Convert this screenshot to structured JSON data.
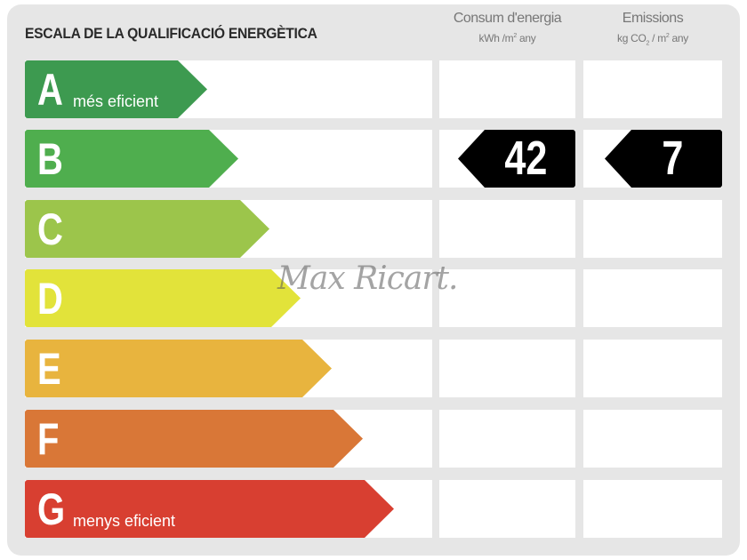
{
  "title": "ESCALA DE LA QUALIFICACIÓ ENERGÈTICA",
  "columns": {
    "consumption": {
      "title": "Consum d'energia",
      "unit_prefix": "kWh /m",
      "unit_sup": "2",
      "unit_suffix": " any"
    },
    "emissions": {
      "title": "Emissions",
      "unit_prefix": "kg CO",
      "unit_sub": "2",
      "unit_mid": " / m",
      "unit_sup": "2",
      "unit_suffix": " any"
    }
  },
  "ratings": [
    {
      "letter": "A",
      "label": "més eficient",
      "color": "#3d9a50"
    },
    {
      "letter": "B",
      "label": "",
      "color": "#4fae4e"
    },
    {
      "letter": "C",
      "label": "",
      "color": "#9cc54b"
    },
    {
      "letter": "D",
      "label": "",
      "color": "#e2e33a"
    },
    {
      "letter": "E",
      "label": "",
      "color": "#e8b43e"
    },
    {
      "letter": "F",
      "label": "",
      "color": "#d97737"
    },
    {
      "letter": "G",
      "label": "menys eficient",
      "color": "#d83f31"
    }
  ],
  "result": {
    "rating": "B",
    "consumption": "42",
    "emissions": "7",
    "badge_color": "#000000"
  },
  "watermark": "Max Ricart."
}
